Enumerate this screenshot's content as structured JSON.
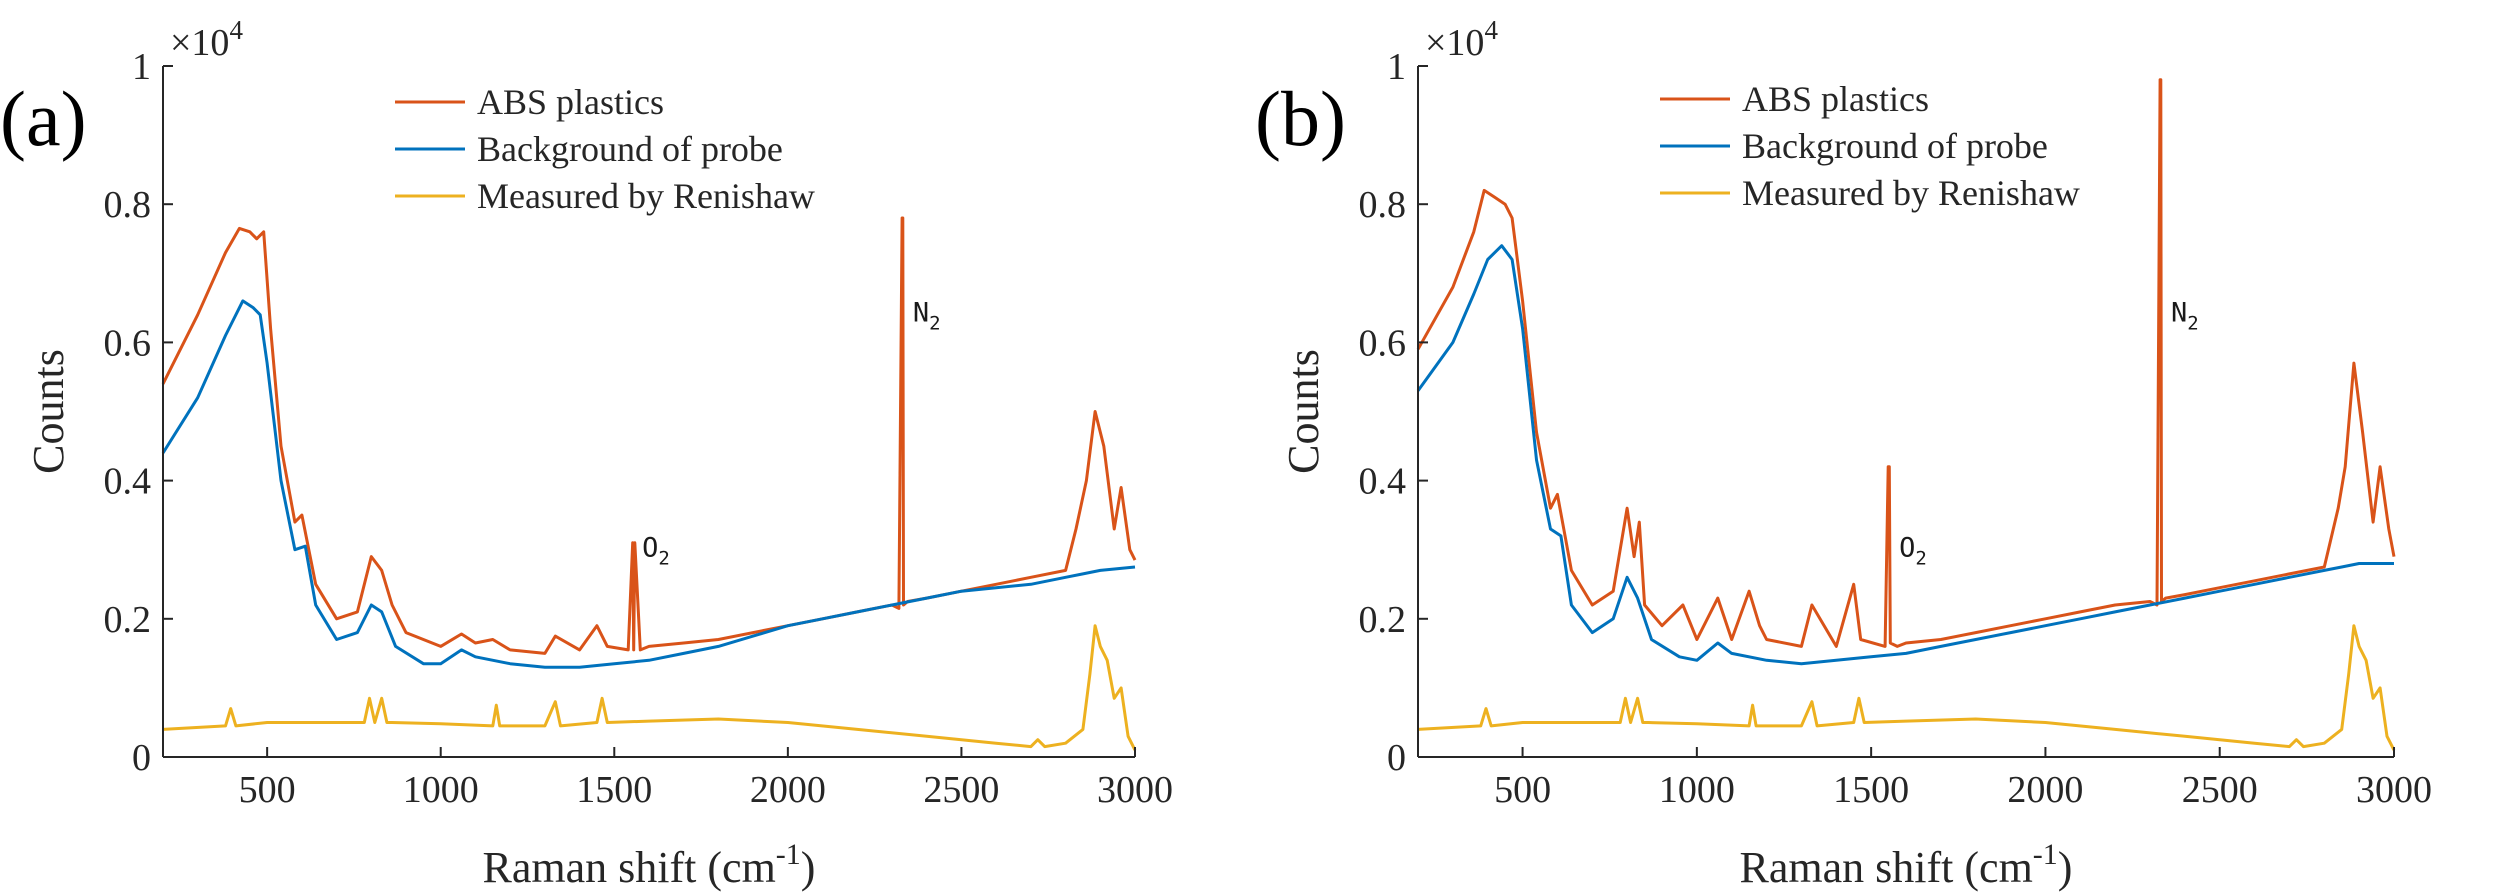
{
  "colors": {
    "abs": "#D95319",
    "background": "#0072BD",
    "renishaw": "#EDB120",
    "axis": "#262626"
  },
  "chart_data": [
    {
      "type": "line",
      "panel_label": "(a)",
      "xlabel": "Raman shift (cm",
      "xlabel_sup": "-1",
      "xlabel_suffix": ")",
      "ylabel": "Counts",
      "y_multiplier": "×10",
      "y_multiplier_exp": "4",
      "xlim": [
        200,
        3000
      ],
      "ylim": [
        0,
        1
      ],
      "xticks": [
        500,
        1000,
        1500,
        2000,
        2500,
        3000
      ],
      "xtick_labels": [
        "500",
        "1000",
        "1500",
        "2000",
        "2500",
        "3000"
      ],
      "yticks": [
        0,
        0.2,
        0.4,
        0.6,
        0.8,
        1
      ],
      "ytick_labels": [
        "0",
        "0.2",
        "0.4",
        "0.6",
        "0.8",
        "1"
      ],
      "legend_position": "top-center",
      "annotations": [
        {
          "text": "O",
          "sub": "2",
          "x": 1620,
          "y": 0.29
        },
        {
          "text": "N",
          "sub": "2",
          "x": 2400,
          "y": 0.63
        }
      ],
      "series": [
        {
          "name": "ABS plastics",
          "color_key": "abs",
          "x": [
            200,
            300,
            380,
            420,
            450,
            470,
            490,
            510,
            540,
            580,
            600,
            640,
            700,
            760,
            800,
            830,
            860,
            900,
            1000,
            1060,
            1100,
            1150,
            1200,
            1300,
            1330,
            1400,
            1450,
            1480,
            1540,
            1553,
            1556,
            1559,
            1575,
            1600,
            1700,
            1800,
            1900,
            2000,
            2100,
            2200,
            2300,
            2320,
            2329,
            2331,
            2333,
            2345,
            2400,
            2500,
            2600,
            2700,
            2800,
            2830,
            2860,
            2885,
            2910,
            2940,
            2960,
            2985,
            3000
          ],
          "y": [
            0.54,
            0.64,
            0.73,
            0.765,
            0.76,
            0.75,
            0.76,
            0.62,
            0.45,
            0.34,
            0.35,
            0.25,
            0.2,
            0.21,
            0.29,
            0.27,
            0.22,
            0.18,
            0.16,
            0.178,
            0.165,
            0.17,
            0.155,
            0.15,
            0.175,
            0.155,
            0.19,
            0.16,
            0.155,
            0.31,
            0.155,
            0.31,
            0.155,
            0.16,
            0.165,
            0.17,
            0.18,
            0.19,
            0.2,
            0.21,
            0.22,
            0.215,
            0.78,
            0.78,
            0.22,
            0.225,
            0.23,
            0.24,
            0.25,
            0.26,
            0.27,
            0.33,
            0.4,
            0.5,
            0.45,
            0.33,
            0.39,
            0.3,
            0.285
          ]
        },
        {
          "name": "Background of probe",
          "color_key": "background",
          "x": [
            200,
            300,
            380,
            430,
            460,
            480,
            500,
            540,
            580,
            610,
            640,
            700,
            760,
            800,
            830,
            870,
            950,
            1000,
            1060,
            1100,
            1200,
            1300,
            1400,
            1500,
            1600,
            1700,
            1800,
            1900,
            2000,
            2100,
            2200,
            2300,
            2400,
            2500,
            2600,
            2700,
            2800,
            2850,
            2900,
            3000
          ],
          "y": [
            0.44,
            0.52,
            0.61,
            0.66,
            0.65,
            0.64,
            0.57,
            0.4,
            0.3,
            0.305,
            0.22,
            0.17,
            0.18,
            0.22,
            0.21,
            0.16,
            0.135,
            0.135,
            0.155,
            0.145,
            0.135,
            0.13,
            0.13,
            0.135,
            0.14,
            0.15,
            0.16,
            0.175,
            0.19,
            0.2,
            0.21,
            0.22,
            0.23,
            0.24,
            0.245,
            0.25,
            0.26,
            0.265,
            0.27,
            0.275
          ]
        },
        {
          "name": "Measured by Renishaw",
          "color_key": "renishaw",
          "x": [
            200,
            380,
            395,
            410,
            500,
            600,
            780,
            795,
            810,
            830,
            845,
            860,
            1000,
            1150,
            1160,
            1170,
            1300,
            1330,
            1345,
            1450,
            1465,
            1480,
            1600,
            1800,
            2000,
            2200,
            2400,
            2600,
            2700,
            2720,
            2740,
            2800,
            2850,
            2870,
            2885,
            2900,
            2920,
            2940,
            2960,
            2980,
            3000
          ],
          "y": [
            0.04,
            0.045,
            0.07,
            0.045,
            0.05,
            0.05,
            0.05,
            0.085,
            0.05,
            0.085,
            0.05,
            0.05,
            0.048,
            0.045,
            0.075,
            0.045,
            0.045,
            0.08,
            0.045,
            0.05,
            0.085,
            0.05,
            0.052,
            0.055,
            0.05,
            0.04,
            0.03,
            0.02,
            0.015,
            0.025,
            0.015,
            0.02,
            0.04,
            0.12,
            0.19,
            0.16,
            0.14,
            0.085,
            0.1,
            0.03,
            0.01
          ]
        }
      ]
    },
    {
      "type": "line",
      "panel_label": "(b)",
      "xlabel": "Raman shift (cm",
      "xlabel_sup": "-1",
      "xlabel_suffix": ")",
      "ylabel": "Counts",
      "y_multiplier": "×10",
      "y_multiplier_exp": "4",
      "xlim": [
        200,
        3000
      ],
      "ylim": [
        0,
        1
      ],
      "xticks": [
        500,
        1000,
        1500,
        2000,
        2500,
        3000
      ],
      "xtick_labels": [
        "500",
        "1000",
        "1500",
        "2000",
        "2500",
        "3000"
      ],
      "yticks": [
        0,
        0.2,
        0.4,
        0.6,
        0.8,
        1
      ],
      "ytick_labels": [
        "0",
        "0.2",
        "0.4",
        "0.6",
        "0.8",
        "1"
      ],
      "legend_position": "top-center",
      "annotations": [
        {
          "text": "O",
          "sub": "2",
          "x": 1620,
          "y": 0.29
        },
        {
          "text": "N",
          "sub": "2",
          "x": 2400,
          "y": 0.63
        }
      ],
      "series": [
        {
          "name": "ABS plastics",
          "color_key": "abs",
          "x": [
            200,
            300,
            360,
            390,
            420,
            450,
            470,
            500,
            540,
            580,
            600,
            640,
            700,
            760,
            800,
            820,
            835,
            850,
            900,
            960,
            1000,
            1060,
            1100,
            1150,
            1180,
            1200,
            1300,
            1330,
            1400,
            1450,
            1470,
            1540,
            1549,
            1552,
            1555,
            1575,
            1600,
            1700,
            1800,
            1900,
            2000,
            2100,
            2200,
            2300,
            2320,
            2329,
            2331,
            2333,
            2345,
            2400,
            2500,
            2600,
            2700,
            2800,
            2840,
            2860,
            2885,
            2910,
            2940,
            2960,
            2985,
            3000
          ],
          "y": [
            0.59,
            0.68,
            0.76,
            0.82,
            0.81,
            0.8,
            0.78,
            0.66,
            0.47,
            0.36,
            0.38,
            0.27,
            0.22,
            0.24,
            0.36,
            0.29,
            0.34,
            0.22,
            0.19,
            0.22,
            0.17,
            0.23,
            0.17,
            0.24,
            0.19,
            0.17,
            0.16,
            0.22,
            0.16,
            0.25,
            0.17,
            0.16,
            0.42,
            0.42,
            0.165,
            0.16,
            0.165,
            0.17,
            0.18,
            0.19,
            0.2,
            0.21,
            0.22,
            0.225,
            0.22,
            0.98,
            0.98,
            0.225,
            0.23,
            0.235,
            0.245,
            0.255,
            0.265,
            0.275,
            0.36,
            0.42,
            0.57,
            0.47,
            0.34,
            0.42,
            0.33,
            0.29
          ]
        },
        {
          "name": "Background of probe",
          "color_key": "background",
          "x": [
            200,
            300,
            360,
            400,
            440,
            470,
            500,
            540,
            580,
            610,
            640,
            700,
            760,
            800,
            830,
            870,
            950,
            1000,
            1060,
            1100,
            1200,
            1300,
            1400,
            1500,
            1600,
            1700,
            1800,
            1900,
            2000,
            2100,
            2200,
            2300,
            2400,
            2500,
            2600,
            2700,
            2800,
            2850,
            2900,
            3000
          ],
          "y": [
            0.53,
            0.6,
            0.67,
            0.72,
            0.74,
            0.72,
            0.62,
            0.43,
            0.33,
            0.32,
            0.22,
            0.18,
            0.2,
            0.26,
            0.23,
            0.17,
            0.145,
            0.14,
            0.165,
            0.15,
            0.14,
            0.135,
            0.14,
            0.145,
            0.15,
            0.16,
            0.17,
            0.18,
            0.19,
            0.2,
            0.21,
            0.22,
            0.23,
            0.24,
            0.25,
            0.26,
            0.27,
            0.275,
            0.28,
            0.28
          ]
        },
        {
          "name": "Measured by Renishaw",
          "color_key": "renishaw",
          "x": [
            200,
            380,
            395,
            410,
            500,
            600,
            780,
            795,
            810,
            830,
            845,
            860,
            1000,
            1150,
            1160,
            1170,
            1300,
            1330,
            1345,
            1450,
            1465,
            1480,
            1600,
            1800,
            2000,
            2200,
            2400,
            2600,
            2700,
            2720,
            2740,
            2800,
            2850,
            2870,
            2885,
            2900,
            2920,
            2940,
            2960,
            2980,
            3000
          ],
          "y": [
            0.04,
            0.045,
            0.07,
            0.045,
            0.05,
            0.05,
            0.05,
            0.085,
            0.05,
            0.085,
            0.05,
            0.05,
            0.048,
            0.045,
            0.075,
            0.045,
            0.045,
            0.08,
            0.045,
            0.05,
            0.085,
            0.05,
            0.052,
            0.055,
            0.05,
            0.04,
            0.03,
            0.02,
            0.015,
            0.025,
            0.015,
            0.02,
            0.04,
            0.12,
            0.19,
            0.16,
            0.14,
            0.085,
            0.1,
            0.03,
            0.01
          ]
        }
      ]
    }
  ]
}
